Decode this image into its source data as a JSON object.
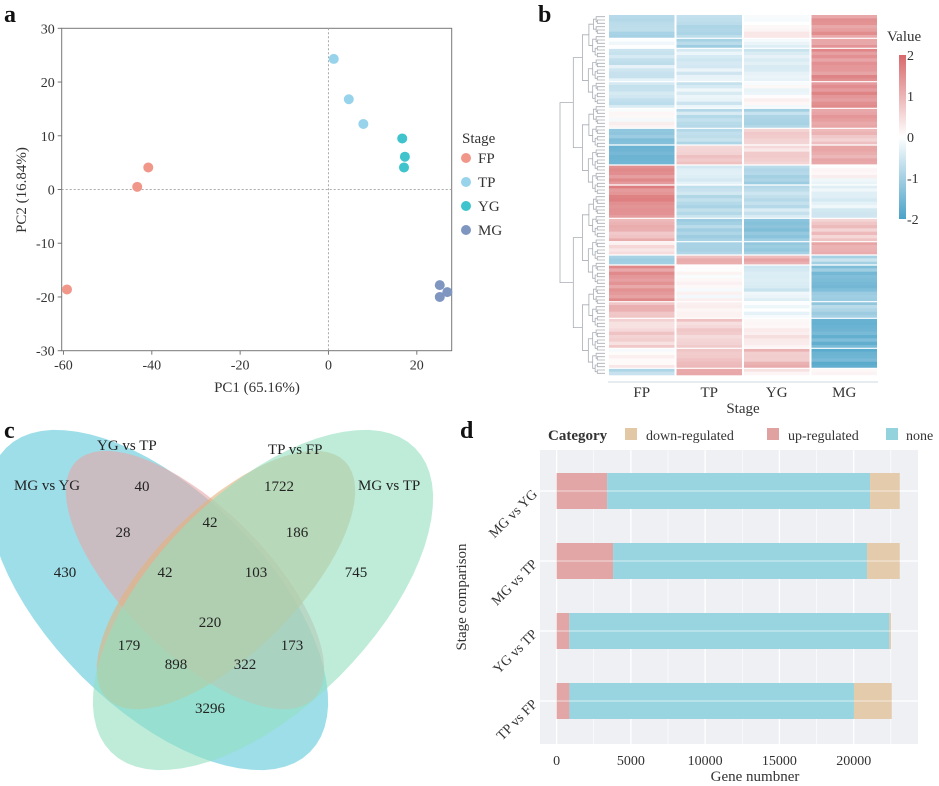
{
  "panel_labels": {
    "a": "a",
    "b": "b",
    "c": "c",
    "d": "d"
  },
  "chart_data": [
    {
      "panel": "a",
      "type": "scatter",
      "xlabel": "PC1 (65.16%)",
      "ylabel": "PC2 (16.84%)",
      "xlim": [
        -60.4,
        27.9
      ],
      "ylim": [
        -30,
        30
      ],
      "xticks": [
        -60,
        -40,
        -20,
        0,
        20
      ],
      "yticks": [
        -30,
        -20,
        -10,
        0,
        10,
        20,
        30
      ],
      "reference_lines": {
        "x": 0,
        "y": 0,
        "style": "dashed"
      },
      "legend": {
        "title": "Stage",
        "placement": "right"
      },
      "series": [
        {
          "name": "FP",
          "color": "#f0978a",
          "points": [
            [
              -43.3,
              0.5
            ],
            [
              -40.8,
              4.1
            ],
            [
              -59.2,
              -18.6
            ]
          ]
        },
        {
          "name": "TP",
          "color": "#98d3ec",
          "points": [
            [
              1.2,
              24.3
            ],
            [
              4.6,
              16.8
            ],
            [
              7.9,
              12.2
            ]
          ]
        },
        {
          "name": "YG",
          "color": "#3fc3cc",
          "points": [
            [
              16.7,
              9.5
            ],
            [
              17.3,
              6.1
            ],
            [
              17.1,
              4.1
            ]
          ]
        },
        {
          "name": "MG",
          "color": "#7f96c0",
          "points": [
            [
              25.2,
              -17.8
            ],
            [
              26.9,
              -19.1
            ],
            [
              25.2,
              -20.0
            ]
          ]
        }
      ]
    },
    {
      "panel": "b",
      "type": "heatmap",
      "columns": [
        "FP",
        "TP",
        "YG",
        "MG"
      ],
      "xlabel": "Stage",
      "colorbar": {
        "title": "Value",
        "ticks": [
          2,
          1,
          0,
          -1,
          -2
        ],
        "range": [
          -2,
          2
        ],
        "low_color": "#4aa2c8",
        "mid_color": "#ffffff",
        "high_color": "#d8696b"
      },
      "row_dendrogram": true,
      "row_blocks": [
        {
          "rows": 7,
          "values": [
            -0.8,
            -0.7,
            0.1,
            1.3
          ]
        },
        {
          "rows": 3,
          "values": [
            0.0,
            -1.0,
            -0.2,
            1.3
          ]
        },
        {
          "rows": 10,
          "values": [
            -0.5,
            -0.4,
            -0.4,
            1.4
          ]
        },
        {
          "rows": 8,
          "values": [
            -0.5,
            -0.4,
            0.0,
            1.4
          ]
        },
        {
          "rows": 6,
          "values": [
            0.1,
            -0.6,
            -0.8,
            1.4
          ]
        },
        {
          "rows": 5,
          "values": [
            -1.2,
            -0.8,
            0.8,
            0.8
          ]
        },
        {
          "rows": 6,
          "values": [
            -1.6,
            0.6,
            0.5,
            1.0
          ]
        },
        {
          "rows": 6,
          "values": [
            1.5,
            -0.3,
            -1.0,
            0.0
          ]
        },
        {
          "rows": 10,
          "values": [
            1.5,
            -0.7,
            -0.6,
            -0.3
          ]
        },
        {
          "rows": 7,
          "values": [
            0.9,
            -1.0,
            -1.2,
            0.7
          ]
        },
        {
          "rows": 4,
          "values": [
            0.3,
            -1.0,
            -1.0,
            1.1
          ]
        },
        {
          "rows": 3,
          "values": [
            -1.0,
            0.9,
            1.1,
            -0.8
          ]
        },
        {
          "rows": 11,
          "values": [
            1.4,
            0.1,
            -0.4,
            -1.3
          ]
        },
        {
          "rows": 5,
          "values": [
            1.0,
            0.3,
            -0.1,
            -1.0
          ]
        },
        {
          "rows": 9,
          "values": [
            0.6,
            0.6,
            0.3,
            -1.6
          ]
        },
        {
          "rows": 6,
          "values": [
            0.1,
            0.8,
            0.9,
            -1.6
          ]
        },
        {
          "rows": 2,
          "values": [
            -0.8,
            1.2,
            0.2,
            0.0
          ]
        }
      ]
    },
    {
      "panel": "c",
      "type": "venn",
      "sets": [
        {
          "name": "MG vs YG",
          "color": "#5cc8d8"
        },
        {
          "name": "YG vs TP",
          "color": "#e8a7a8"
        },
        {
          "name": "TP vs FP",
          "color": "#e2b07c"
        },
        {
          "name": "MG vs TP",
          "color": "#93dfbf"
        }
      ],
      "regions": [
        {
          "sets": [
            "MG vs YG"
          ],
          "count": 430
        },
        {
          "sets": [
            "YG vs TP"
          ],
          "count": 40
        },
        {
          "sets": [
            "TP vs FP"
          ],
          "count": 1722
        },
        {
          "sets": [
            "MG vs TP"
          ],
          "count": 745
        },
        {
          "sets": [
            "MG vs YG",
            "YG vs TP"
          ],
          "count": 28
        },
        {
          "sets": [
            "YG vs TP",
            "TP vs FP"
          ],
          "count": 42
        },
        {
          "sets": [
            "TP vs FP",
            "MG vs TP"
          ],
          "count": 186
        },
        {
          "sets": [
            "MG vs YG",
            "YG vs TP",
            "TP vs FP"
          ],
          "count": 42
        },
        {
          "sets": [
            "YG vs TP",
            "TP vs FP",
            "MG vs TP"
          ],
          "count": 103
        },
        {
          "sets": [
            "MG vs YG",
            "YG vs TP",
            "TP vs FP",
            "MG vs TP"
          ],
          "count": 220
        },
        {
          "sets": [
            "MG vs YG",
            "TP vs FP"
          ],
          "count": 179
        },
        {
          "sets": [
            "YG vs TP",
            "MG vs TP"
          ],
          "count": 173
        },
        {
          "sets": [
            "MG vs YG",
            "TP vs FP",
            "MG vs TP"
          ],
          "count": 898
        },
        {
          "sets": [
            "MG vs YG",
            "YG vs TP",
            "MG vs TP"
          ],
          "count": 322
        },
        {
          "sets": [
            "MG vs YG",
            "MG vs TP"
          ],
          "count": 3296
        }
      ]
    },
    {
      "panel": "d",
      "type": "bar",
      "orientation": "horizontal",
      "stacked": true,
      "categories": [
        "MG vs YG",
        "MG vs TP",
        "YG vs TP",
        "TP vs FP"
      ],
      "xlabel": "Gene numbner",
      "ylabel": "Stage comparison",
      "xlim": [
        -1120,
        24330
      ],
      "xticks": [
        0,
        5000,
        10000,
        15000,
        20000
      ],
      "grid": true,
      "legend": {
        "title": "Category",
        "placement": "top"
      },
      "series": [
        {
          "name": "up-regulated",
          "color": "#e0a1a1",
          "values": [
            3400,
            3800,
            850,
            860
          ]
        },
        {
          "name": "none",
          "color": "#93d3de",
          "values": [
            17700,
            17100,
            21550,
            19160
          ]
        },
        {
          "name": "down-regulated",
          "color": "#e3c8a6",
          "values": [
            2000,
            2200,
            110,
            2540
          ]
        }
      ],
      "legend_order": [
        "down-regulated",
        "up-regulated",
        "none"
      ]
    }
  ]
}
